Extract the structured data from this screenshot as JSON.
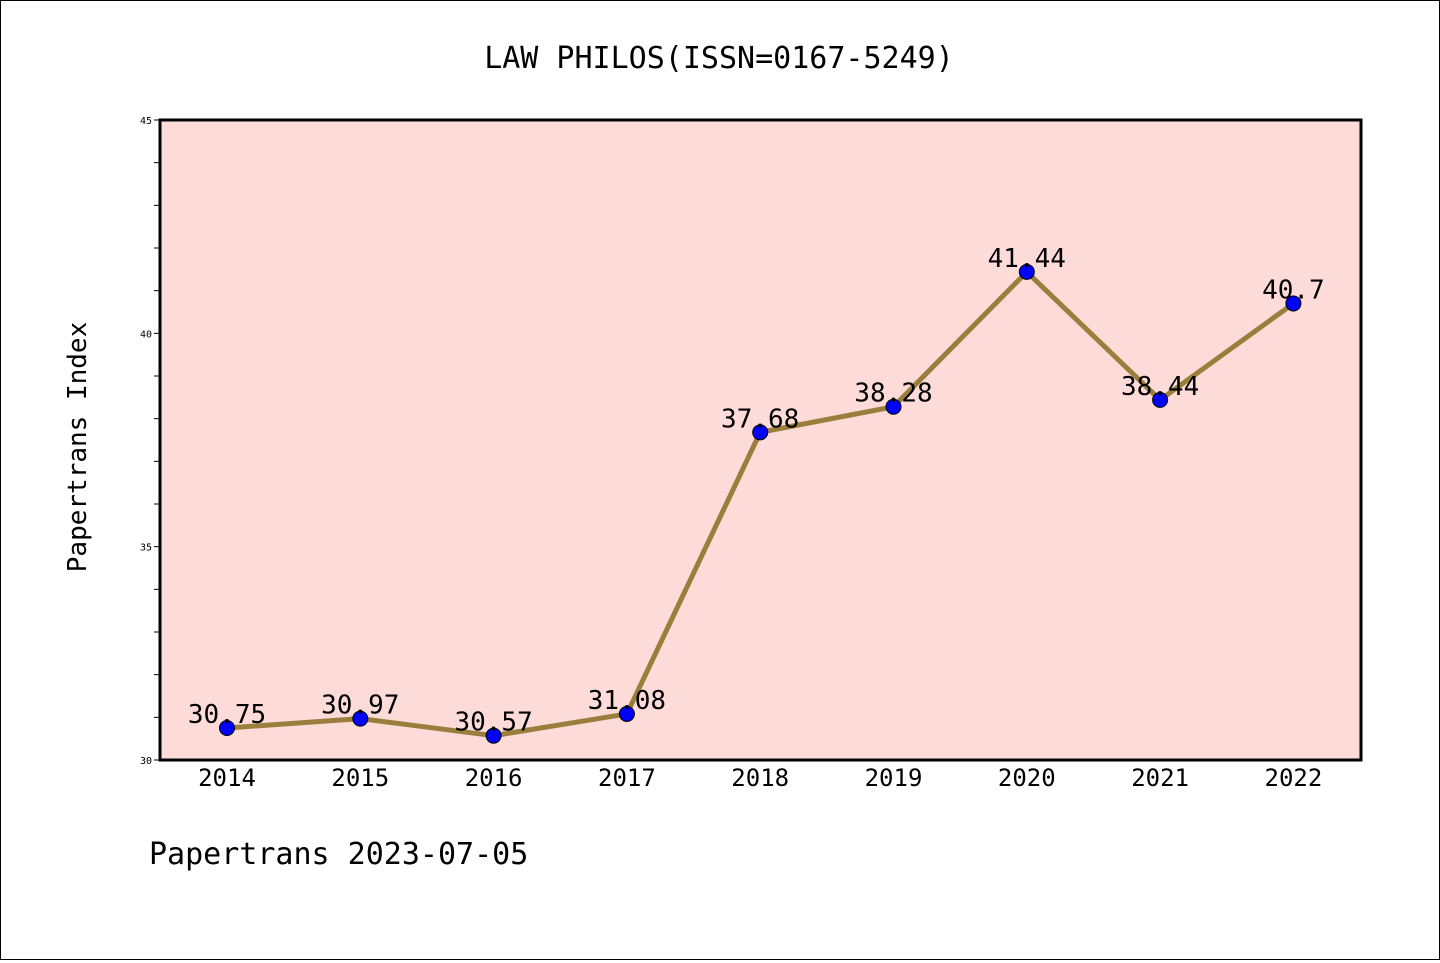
{
  "chart_data": {
    "type": "line",
    "title": "LAW PHILOS(ISSN=0167-5249)",
    "xlabel": "",
    "ylabel": "Papertrans Index",
    "categories": [
      "2014",
      "2015",
      "2016",
      "2017",
      "2018",
      "2019",
      "2020",
      "2021",
      "2022"
    ],
    "series": [
      {
        "values": [
          30.75,
          30.97,
          30.57,
          31.08,
          37.68,
          38.28,
          41.44,
          38.44,
          40.7
        ],
        "labels": [
          "30.75",
          "30.97",
          "30.57",
          "31.08",
          "37.68",
          "38.28",
          "41.44",
          "38.44",
          "40.7"
        ]
      }
    ],
    "ylim": [
      30,
      45
    ],
    "yticks": [
      "30",
      "35",
      "40",
      "45"
    ],
    "grid": false,
    "legend": "none",
    "footer": "Papertrans 2023-07-05",
    "colors": {
      "plot_background": "#fddbd8",
      "line": "#9a7f3c",
      "marker": "#0000ff",
      "axes": "#000000"
    }
  }
}
